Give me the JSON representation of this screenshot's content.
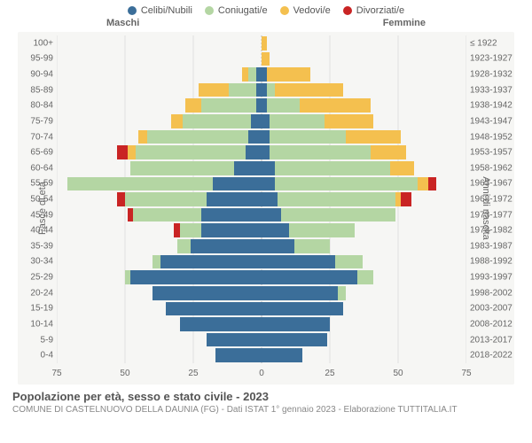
{
  "legend": [
    {
      "label": "Celibi/Nubili",
      "color": "#3b6e99"
    },
    {
      "label": "Coniugati/e",
      "color": "#b4d6a3"
    },
    {
      "label": "Vedovi/e",
      "color": "#f4c04f"
    },
    {
      "label": "Divorziati/e",
      "color": "#c92424"
    }
  ],
  "colors": {
    "celibi": "#3b6e99",
    "coniugati": "#b4d6a3",
    "vedovi": "#f4c04f",
    "divorziati": "#c92424",
    "background": "#f6f6f4",
    "grid": "#e0e0e0",
    "centerline": "#bbbbbb"
  },
  "headers": {
    "maschi": "Maschi",
    "femmine": "Femmine"
  },
  "axis": {
    "xlabel_left": "Fasce di età",
    "xlabel_right": "Anni di nascita",
    "xmax": 75,
    "xticks": [
      75,
      50,
      25,
      0,
      25,
      50,
      75
    ]
  },
  "rows": [
    {
      "age": "100+",
      "year": "≤ 1922",
      "m": {
        "celibi": 0,
        "coniugati": 0,
        "vedovi": 0,
        "divorziati": 0
      },
      "f": {
        "celibi": 0,
        "coniugati": 0,
        "vedovi": 2,
        "divorziati": 0
      }
    },
    {
      "age": "95-99",
      "year": "1923-1927",
      "m": {
        "celibi": 0,
        "coniugati": 0,
        "vedovi": 0,
        "divorziati": 0
      },
      "f": {
        "celibi": 0,
        "coniugati": 0,
        "vedovi": 3,
        "divorziati": 0
      }
    },
    {
      "age": "90-94",
      "year": "1928-1932",
      "m": {
        "celibi": 2,
        "coniugati": 3,
        "vedovi": 2,
        "divorziati": 0
      },
      "f": {
        "celibi": 2,
        "coniugati": 0,
        "vedovi": 16,
        "divorziati": 0
      }
    },
    {
      "age": "85-89",
      "year": "1933-1937",
      "m": {
        "celibi": 2,
        "coniugati": 10,
        "vedovi": 11,
        "divorziati": 0
      },
      "f": {
        "celibi": 2,
        "coniugati": 3,
        "vedovi": 25,
        "divorziati": 0
      }
    },
    {
      "age": "80-84",
      "year": "1938-1942",
      "m": {
        "celibi": 2,
        "coniugati": 20,
        "vedovi": 6,
        "divorziati": 0
      },
      "f": {
        "celibi": 2,
        "coniugati": 12,
        "vedovi": 26,
        "divorziati": 0
      }
    },
    {
      "age": "75-79",
      "year": "1943-1947",
      "m": {
        "celibi": 4,
        "coniugati": 25,
        "vedovi": 4,
        "divorziati": 0
      },
      "f": {
        "celibi": 3,
        "coniugati": 20,
        "vedovi": 18,
        "divorziati": 0
      }
    },
    {
      "age": "70-74",
      "year": "1948-1952",
      "m": {
        "celibi": 5,
        "coniugati": 37,
        "vedovi": 3,
        "divorziati": 0
      },
      "f": {
        "celibi": 3,
        "coniugati": 28,
        "vedovi": 20,
        "divorziati": 0
      }
    },
    {
      "age": "65-69",
      "year": "1953-1957",
      "m": {
        "celibi": 6,
        "coniugati": 40,
        "vedovi": 3,
        "divorziati": 4
      },
      "f": {
        "celibi": 3,
        "coniugati": 37,
        "vedovi": 13,
        "divorziati": 0
      }
    },
    {
      "age": "60-64",
      "year": "1958-1962",
      "m": {
        "celibi": 10,
        "coniugati": 38,
        "vedovi": 0,
        "divorziati": 0
      },
      "f": {
        "celibi": 5,
        "coniugati": 42,
        "vedovi": 9,
        "divorziati": 0
      }
    },
    {
      "age": "55-59",
      "year": "1963-1967",
      "m": {
        "celibi": 18,
        "coniugati": 53,
        "vedovi": 0,
        "divorziati": 0
      },
      "f": {
        "celibi": 5,
        "coniugati": 52,
        "vedovi": 4,
        "divorziati": 3
      }
    },
    {
      "age": "50-54",
      "year": "1968-1972",
      "m": {
        "celibi": 20,
        "coniugati": 30,
        "vedovi": 0,
        "divorziati": 3
      },
      "f": {
        "celibi": 6,
        "coniugati": 43,
        "vedovi": 2,
        "divorziati": 4
      }
    },
    {
      "age": "45-49",
      "year": "1973-1977",
      "m": {
        "celibi": 22,
        "coniugati": 25,
        "vedovi": 0,
        "divorziati": 2
      },
      "f": {
        "celibi": 7,
        "coniugati": 42,
        "vedovi": 0,
        "divorziati": 0
      }
    },
    {
      "age": "40-44",
      "year": "1978-1982",
      "m": {
        "celibi": 22,
        "coniugati": 8,
        "vedovi": 0,
        "divorziati": 2
      },
      "f": {
        "celibi": 10,
        "coniugati": 24,
        "vedovi": 0,
        "divorziati": 0
      }
    },
    {
      "age": "35-39",
      "year": "1983-1987",
      "m": {
        "celibi": 26,
        "coniugati": 5,
        "vedovi": 0,
        "divorziati": 0
      },
      "f": {
        "celibi": 12,
        "coniugati": 13,
        "vedovi": 0,
        "divorziati": 0
      }
    },
    {
      "age": "30-34",
      "year": "1988-1992",
      "m": {
        "celibi": 37,
        "coniugati": 3,
        "vedovi": 0,
        "divorziati": 0
      },
      "f": {
        "celibi": 27,
        "coniugati": 10,
        "vedovi": 0,
        "divorziati": 0
      }
    },
    {
      "age": "25-29",
      "year": "1993-1997",
      "m": {
        "celibi": 48,
        "coniugati": 2,
        "vedovi": 0,
        "divorziati": 0
      },
      "f": {
        "celibi": 35,
        "coniugati": 6,
        "vedovi": 0,
        "divorziati": 0
      }
    },
    {
      "age": "20-24",
      "year": "1998-2002",
      "m": {
        "celibi": 40,
        "coniugati": 0,
        "vedovi": 0,
        "divorziati": 0
      },
      "f": {
        "celibi": 28,
        "coniugati": 3,
        "vedovi": 0,
        "divorziati": 0
      }
    },
    {
      "age": "15-19",
      "year": "2003-2007",
      "m": {
        "celibi": 35,
        "coniugati": 0,
        "vedovi": 0,
        "divorziati": 0
      },
      "f": {
        "celibi": 30,
        "coniugati": 0,
        "vedovi": 0,
        "divorziati": 0
      }
    },
    {
      "age": "10-14",
      "year": "2008-2012",
      "m": {
        "celibi": 30,
        "coniugati": 0,
        "vedovi": 0,
        "divorziati": 0
      },
      "f": {
        "celibi": 25,
        "coniugati": 0,
        "vedovi": 0,
        "divorziati": 0
      }
    },
    {
      "age": "5-9",
      "year": "2013-2017",
      "m": {
        "celibi": 20,
        "coniugati": 0,
        "vedovi": 0,
        "divorziati": 0
      },
      "f": {
        "celibi": 24,
        "coniugati": 0,
        "vedovi": 0,
        "divorziati": 0
      }
    },
    {
      "age": "0-4",
      "year": "2018-2022",
      "m": {
        "celibi": 17,
        "coniugati": 0,
        "vedovi": 0,
        "divorziati": 0
      },
      "f": {
        "celibi": 15,
        "coniugati": 0,
        "vedovi": 0,
        "divorziati": 0
      }
    }
  ],
  "footer": {
    "title": "Popolazione per età, sesso e stato civile - 2023",
    "sub": "COMUNE DI CASTELNUOVO DELLA DAUNIA (FG) - Dati ISTAT 1° gennaio 2023 - Elaborazione TUTTITALIA.IT"
  }
}
